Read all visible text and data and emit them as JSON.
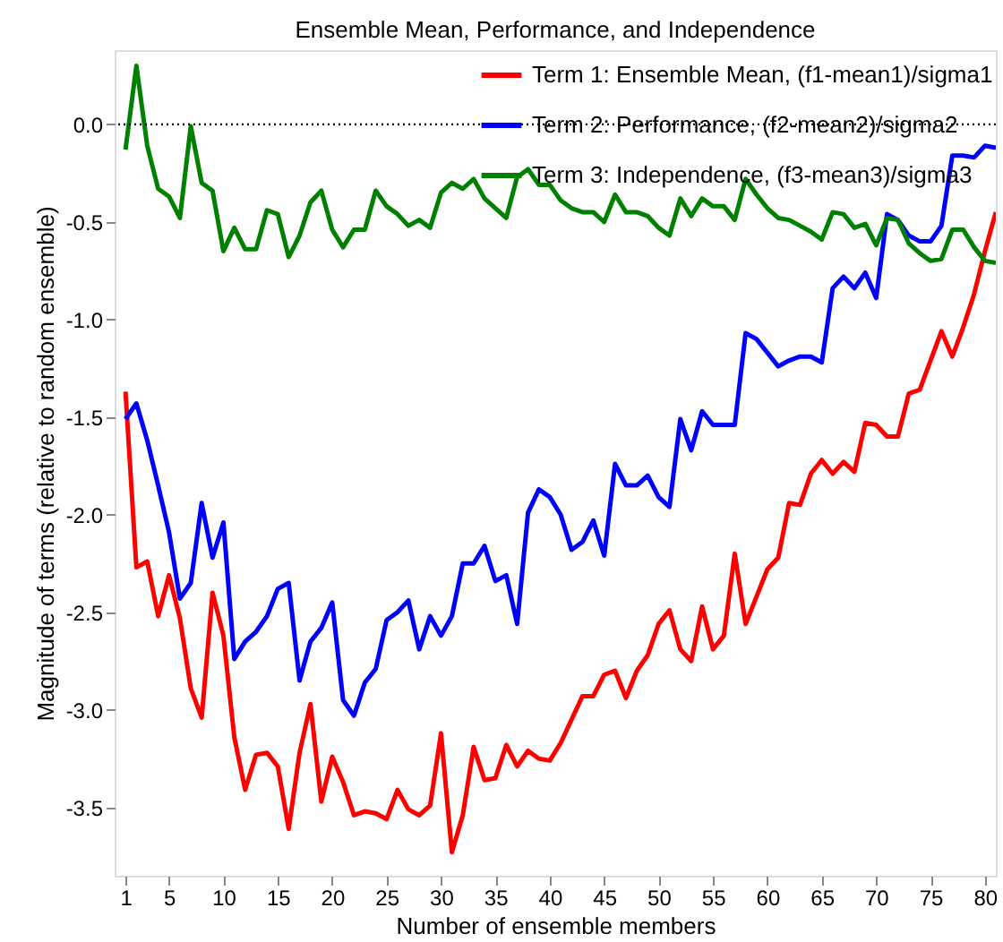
{
  "chart_data": {
    "type": "line",
    "title": "Ensemble Mean, Performance, and Independence",
    "xlabel": "Number of ensemble members",
    "ylabel": "Magnitude of terms (relative to random ensemble)",
    "x": [
      1,
      2,
      3,
      4,
      5,
      6,
      7,
      8,
      9,
      10,
      11,
      12,
      13,
      14,
      15,
      16,
      17,
      18,
      19,
      20,
      21,
      22,
      23,
      24,
      25,
      26,
      27,
      28,
      29,
      30,
      31,
      32,
      33,
      34,
      35,
      36,
      37,
      38,
      39,
      40,
      41,
      42,
      43,
      44,
      45,
      46,
      47,
      48,
      49,
      50,
      51,
      52,
      53,
      54,
      55,
      56,
      57,
      58,
      59,
      60,
      61,
      62,
      63,
      64,
      65,
      66,
      67,
      68,
      69,
      70,
      71,
      72,
      73,
      74,
      75,
      76,
      77,
      78,
      79,
      80,
      81
    ],
    "series": [
      {
        "name": "Term 1: Ensemble Mean, (f1-mean1)/sigma1",
        "color": "#ff0000",
        "values": [
          -1.37,
          -2.27,
          -2.24,
          -2.52,
          -2.31,
          -2.53,
          -2.89,
          -3.04,
          -2.4,
          -2.62,
          -3.14,
          -3.41,
          -3.23,
          -3.22,
          -3.29,
          -3.61,
          -3.22,
          -2.97,
          -3.47,
          -3.24,
          -3.37,
          -3.54,
          -3.52,
          -3.53,
          -3.56,
          -3.41,
          -3.51,
          -3.54,
          -3.49,
          -3.12,
          -3.73,
          -3.54,
          -3.19,
          -3.36,
          -3.35,
          -3.18,
          -3.29,
          -3.21,
          -3.25,
          -3.26,
          -3.17,
          -3.05,
          -2.93,
          -2.93,
          -2.82,
          -2.8,
          -2.94,
          -2.8,
          -2.72,
          -2.56,
          -2.49,
          -2.69,
          -2.75,
          -2.47,
          -2.69,
          -2.62,
          -2.2,
          -2.56,
          -2.42,
          -2.28,
          -2.22,
          -1.94,
          -1.95,
          -1.79,
          -1.72,
          -1.79,
          -1.73,
          -1.78,
          -1.53,
          -1.54,
          -1.6,
          -1.6,
          -1.38,
          -1.36,
          -1.21,
          -1.06,
          -1.19,
          -1.04,
          -0.87,
          -0.65,
          -0.45
        ]
      },
      {
        "name": "Term 2: Performance, (f2-mean2)/sigma2",
        "color": "#0000ff",
        "values": [
          -1.51,
          -1.43,
          -1.62,
          -1.85,
          -2.09,
          -2.43,
          -2.35,
          -1.94,
          -2.22,
          -2.04,
          -2.74,
          -2.65,
          -2.6,
          -2.52,
          -2.38,
          -2.35,
          -2.85,
          -2.65,
          -2.58,
          -2.45,
          -2.95,
          -3.03,
          -2.86,
          -2.79,
          -2.54,
          -2.5,
          -2.44,
          -2.69,
          -2.52,
          -2.62,
          -2.52,
          -2.25,
          -2.25,
          -2.16,
          -2.34,
          -2.31,
          -2.56,
          -1.99,
          -1.87,
          -1.91,
          -2.0,
          -2.18,
          -2.14,
          -2.03,
          -2.21,
          -1.74,
          -1.85,
          -1.85,
          -1.8,
          -1.91,
          -1.96,
          -1.51,
          -1.67,
          -1.47,
          -1.54,
          -1.54,
          -1.54,
          -1.07,
          -1.1,
          -1.17,
          -1.24,
          -1.21,
          -1.19,
          -1.19,
          -1.22,
          -0.84,
          -0.78,
          -0.84,
          -0.76,
          -0.89,
          -0.46,
          -0.49,
          -0.57,
          -0.6,
          -0.6,
          -0.52,
          -0.16,
          -0.16,
          -0.17,
          -0.11,
          -0.12
        ]
      },
      {
        "name": "Term 3: Independence, (f3-mean3)/sigma3",
        "color": "#008000",
        "values": [
          -0.13,
          0.3,
          -0.11,
          -0.33,
          -0.37,
          -0.48,
          -0.01,
          -0.3,
          -0.34,
          -0.65,
          -0.53,
          -0.64,
          -0.64,
          -0.44,
          -0.46,
          -0.68,
          -0.57,
          -0.4,
          -0.34,
          -0.54,
          -0.63,
          -0.54,
          -0.54,
          -0.34,
          -0.42,
          -0.46,
          -0.52,
          -0.49,
          -0.53,
          -0.35,
          -0.3,
          -0.33,
          -0.28,
          -0.38,
          -0.43,
          -0.48,
          -0.27,
          -0.23,
          -0.31,
          -0.31,
          -0.39,
          -0.43,
          -0.45,
          -0.45,
          -0.5,
          -0.36,
          -0.45,
          -0.45,
          -0.47,
          -0.53,
          -0.57,
          -0.38,
          -0.47,
          -0.38,
          -0.42,
          -0.42,
          -0.49,
          -0.28,
          -0.36,
          -0.43,
          -0.48,
          -0.49,
          -0.52,
          -0.55,
          -0.59,
          -0.45,
          -0.46,
          -0.53,
          -0.51,
          -0.62,
          -0.48,
          -0.49,
          -0.61,
          -0.66,
          -0.7,
          -0.69,
          -0.54,
          -0.54,
          -0.63,
          -0.7,
          -0.71
        ]
      }
    ],
    "xlim": [
      0,
      81
    ],
    "xticks": [
      1,
      5,
      10,
      15,
      20,
      25,
      30,
      35,
      40,
      45,
      50,
      55,
      60,
      65,
      70,
      75,
      80
    ],
    "ylim": [
      -3.85,
      0.38
    ],
    "yticks": [
      {
        "value": -3.5,
        "label": "-3.5"
      },
      {
        "value": -3.0,
        "label": "-3.0"
      },
      {
        "value": -2.5,
        "label": "-2.5"
      },
      {
        "value": -2.0,
        "label": "-2.0"
      },
      {
        "value": -1.5,
        "label": "-1.5"
      },
      {
        "value": -1.0,
        "label": "-1.0"
      },
      {
        "value": -0.5,
        "label": "-0.5"
      },
      {
        "value": 0,
        "label": "0.0"
      }
    ],
    "ref_lines": [
      {
        "axis": "y",
        "value": 0,
        "color": "#000000",
        "line_style": "dotted"
      }
    ],
    "grid": false,
    "legend": "top right",
    "marker": "none",
    "line_style": "solid"
  }
}
